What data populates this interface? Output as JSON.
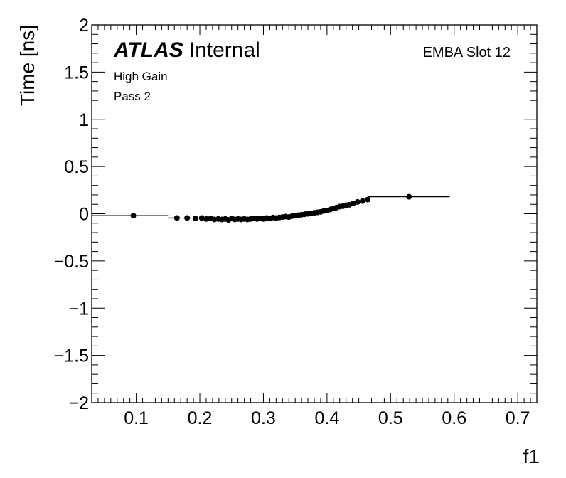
{
  "chart_data": {
    "type": "scatter",
    "xlabel": "f1",
    "ylabel": "Time [ns]",
    "xlim": [
      0.03,
      0.73
    ],
    "ylim": [
      -2,
      2
    ],
    "x_ticks": [
      0.1,
      0.2,
      0.3,
      0.4,
      0.5,
      0.6,
      0.7
    ],
    "x_tick_labels": [
      "0.1",
      "0.2",
      "0.3",
      "0.4",
      "0.5",
      "0.6",
      "0.7"
    ],
    "y_ticks": [
      -2,
      -1.5,
      -1,
      -0.5,
      0,
      0.5,
      1,
      1.5,
      2
    ],
    "y_tick_labels": [
      "−2",
      "−1.5",
      "−1",
      "−0.5",
      "0",
      "0.5",
      "1",
      "1.5",
      "2"
    ],
    "grid": false,
    "annotations": {
      "atlas_bold": "ATLAS",
      "atlas_label": "Internal",
      "module": "EMBA Slot 12",
      "gain": "High Gain",
      "pass": "Pass 2"
    },
    "points": [
      {
        "x": 0.0955,
        "y": -0.02,
        "xerr_lo": 0.0655,
        "xerr_hi": 0.0545
      },
      {
        "x": 0.164,
        "y": -0.045,
        "xerr_lo": 0.014,
        "xerr_hi": 0.005
      },
      {
        "x": 0.18,
        "y": -0.045,
        "xerr_lo": 0.005,
        "xerr_hi": 0.005
      },
      {
        "x": 0.193,
        "y": -0.05,
        "xerr_lo": 0.004,
        "xerr_hi": 0.004
      },
      {
        "x": 0.203,
        "y": -0.045,
        "xerr_lo": 0.003,
        "xerr_hi": 0.003
      },
      {
        "x": 0.21,
        "y": -0.055,
        "xerr_lo": 0.003,
        "xerr_hi": 0.003
      },
      {
        "x": 0.217,
        "y": -0.05,
        "xerr_lo": 0.003,
        "xerr_hi": 0.003
      },
      {
        "x": 0.223,
        "y": -0.06,
        "xerr_lo": 0.003,
        "xerr_hi": 0.003
      },
      {
        "x": 0.229,
        "y": -0.055,
        "xerr_lo": 0.003,
        "xerr_hi": 0.003
      },
      {
        "x": 0.235,
        "y": -0.06,
        "xerr_lo": 0.003,
        "xerr_hi": 0.003
      },
      {
        "x": 0.24,
        "y": -0.055,
        "xerr_lo": 0.003,
        "xerr_hi": 0.003
      },
      {
        "x": 0.245,
        "y": -0.065,
        "xerr_lo": 0.003,
        "xerr_hi": 0.003
      },
      {
        "x": 0.25,
        "y": -0.05,
        "xerr_lo": 0.003,
        "xerr_hi": 0.003
      },
      {
        "x": 0.255,
        "y": -0.06,
        "xerr_lo": 0.003,
        "xerr_hi": 0.003
      },
      {
        "x": 0.26,
        "y": -0.055,
        "xerr_lo": 0.003,
        "xerr_hi": 0.003
      },
      {
        "x": 0.265,
        "y": -0.06,
        "xerr_lo": 0.003,
        "xerr_hi": 0.003
      },
      {
        "x": 0.27,
        "y": -0.055,
        "xerr_lo": 0.003,
        "xerr_hi": 0.003
      },
      {
        "x": 0.275,
        "y": -0.06,
        "xerr_lo": 0.003,
        "xerr_hi": 0.003
      },
      {
        "x": 0.28,
        "y": -0.055,
        "xerr_lo": 0.003,
        "xerr_hi": 0.003
      },
      {
        "x": 0.285,
        "y": -0.05,
        "xerr_lo": 0.003,
        "xerr_hi": 0.003
      },
      {
        "x": 0.29,
        "y": -0.055,
        "xerr_lo": 0.003,
        "xerr_hi": 0.003
      },
      {
        "x": 0.295,
        "y": -0.05,
        "xerr_lo": 0.003,
        "xerr_hi": 0.003
      },
      {
        "x": 0.3,
        "y": -0.055,
        "xerr_lo": 0.003,
        "xerr_hi": 0.003
      },
      {
        "x": 0.305,
        "y": -0.045,
        "xerr_lo": 0.003,
        "xerr_hi": 0.003
      },
      {
        "x": 0.31,
        "y": -0.05,
        "xerr_lo": 0.003,
        "xerr_hi": 0.003
      },
      {
        "x": 0.315,
        "y": -0.04,
        "xerr_lo": 0.003,
        "xerr_hi": 0.003
      },
      {
        "x": 0.32,
        "y": -0.045,
        "xerr_lo": 0.003,
        "xerr_hi": 0.003
      },
      {
        "x": 0.325,
        "y": -0.04,
        "xerr_lo": 0.003,
        "xerr_hi": 0.003
      },
      {
        "x": 0.33,
        "y": -0.035,
        "xerr_lo": 0.003,
        "xerr_hi": 0.003
      },
      {
        "x": 0.335,
        "y": -0.03,
        "xerr_lo": 0.003,
        "xerr_hi": 0.003
      },
      {
        "x": 0.34,
        "y": -0.035,
        "xerr_lo": 0.003,
        "xerr_hi": 0.003
      },
      {
        "x": 0.345,
        "y": -0.025,
        "xerr_lo": 0.003,
        "xerr_hi": 0.003
      },
      {
        "x": 0.35,
        "y": -0.02,
        "xerr_lo": 0.003,
        "xerr_hi": 0.003
      },
      {
        "x": 0.355,
        "y": -0.015,
        "xerr_lo": 0.003,
        "xerr_hi": 0.003
      },
      {
        "x": 0.36,
        "y": -0.01,
        "xerr_lo": 0.003,
        "xerr_hi": 0.003
      },
      {
        "x": 0.365,
        "y": -0.005,
        "xerr_lo": 0.003,
        "xerr_hi": 0.003
      },
      {
        "x": 0.37,
        "y": 0.0,
        "xerr_lo": 0.003,
        "xerr_hi": 0.003
      },
      {
        "x": 0.375,
        "y": 0.005,
        "xerr_lo": 0.003,
        "xerr_hi": 0.003
      },
      {
        "x": 0.38,
        "y": 0.01,
        "xerr_lo": 0.003,
        "xerr_hi": 0.003
      },
      {
        "x": 0.385,
        "y": 0.015,
        "xerr_lo": 0.003,
        "xerr_hi": 0.003
      },
      {
        "x": 0.39,
        "y": 0.02,
        "xerr_lo": 0.003,
        "xerr_hi": 0.003
      },
      {
        "x": 0.395,
        "y": 0.03,
        "xerr_lo": 0.003,
        "xerr_hi": 0.003
      },
      {
        "x": 0.4,
        "y": 0.035,
        "xerr_lo": 0.003,
        "xerr_hi": 0.003
      },
      {
        "x": 0.405,
        "y": 0.045,
        "xerr_lo": 0.003,
        "xerr_hi": 0.003
      },
      {
        "x": 0.41,
        "y": 0.055,
        "xerr_lo": 0.003,
        "xerr_hi": 0.003
      },
      {
        "x": 0.415,
        "y": 0.065,
        "xerr_lo": 0.003,
        "xerr_hi": 0.003
      },
      {
        "x": 0.42,
        "y": 0.075,
        "xerr_lo": 0.003,
        "xerr_hi": 0.003
      },
      {
        "x": 0.425,
        "y": 0.08,
        "xerr_lo": 0.003,
        "xerr_hi": 0.003
      },
      {
        "x": 0.43,
        "y": 0.09,
        "xerr_lo": 0.003,
        "xerr_hi": 0.003
      },
      {
        "x": 0.435,
        "y": 0.095,
        "xerr_lo": 0.003,
        "xerr_hi": 0.003
      },
      {
        "x": 0.441,
        "y": 0.11,
        "xerr_lo": 0.003,
        "xerr_hi": 0.003
      },
      {
        "x": 0.448,
        "y": 0.125,
        "xerr_lo": 0.003,
        "xerr_hi": 0.003
      },
      {
        "x": 0.456,
        "y": 0.135,
        "xerr_lo": 0.004,
        "xerr_hi": 0.004
      },
      {
        "x": 0.464,
        "y": 0.15,
        "xerr_lo": 0.004,
        "xerr_hi": 0.004
      },
      {
        "x": 0.529,
        "y": 0.18,
        "xerr_lo": 0.064,
        "xerr_hi": 0.064
      }
    ]
  }
}
